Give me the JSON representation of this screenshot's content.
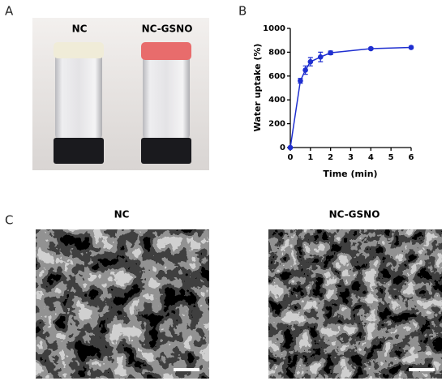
{
  "panel_labels": [
    "A",
    "B",
    "C"
  ],
  "photo": {
    "labels": [
      "NC",
      "NC-GSNO"
    ]
  },
  "chart_data": {
    "type": "line",
    "x": [
      0,
      0.5,
      0.75,
      1,
      1.5,
      2,
      4,
      6
    ],
    "values": [
      0,
      560,
      650,
      720,
      760,
      795,
      830,
      840
    ],
    "errors": [
      0,
      20,
      35,
      35,
      40,
      15,
      10,
      10
    ],
    "color": "#1f2fd0",
    "xlabel": "Time (min)",
    "ylabel": "Water uptake (%)",
    "xlim": [
      0,
      6
    ],
    "ylim": [
      0,
      1000
    ],
    "xticks": [
      0,
      1,
      2,
      3,
      4,
      5,
      6
    ],
    "yticks": [
      0,
      200,
      400,
      600,
      800,
      1000
    ]
  },
  "sem": {
    "titles": [
      "NC",
      "NC-GSNO"
    ]
  }
}
